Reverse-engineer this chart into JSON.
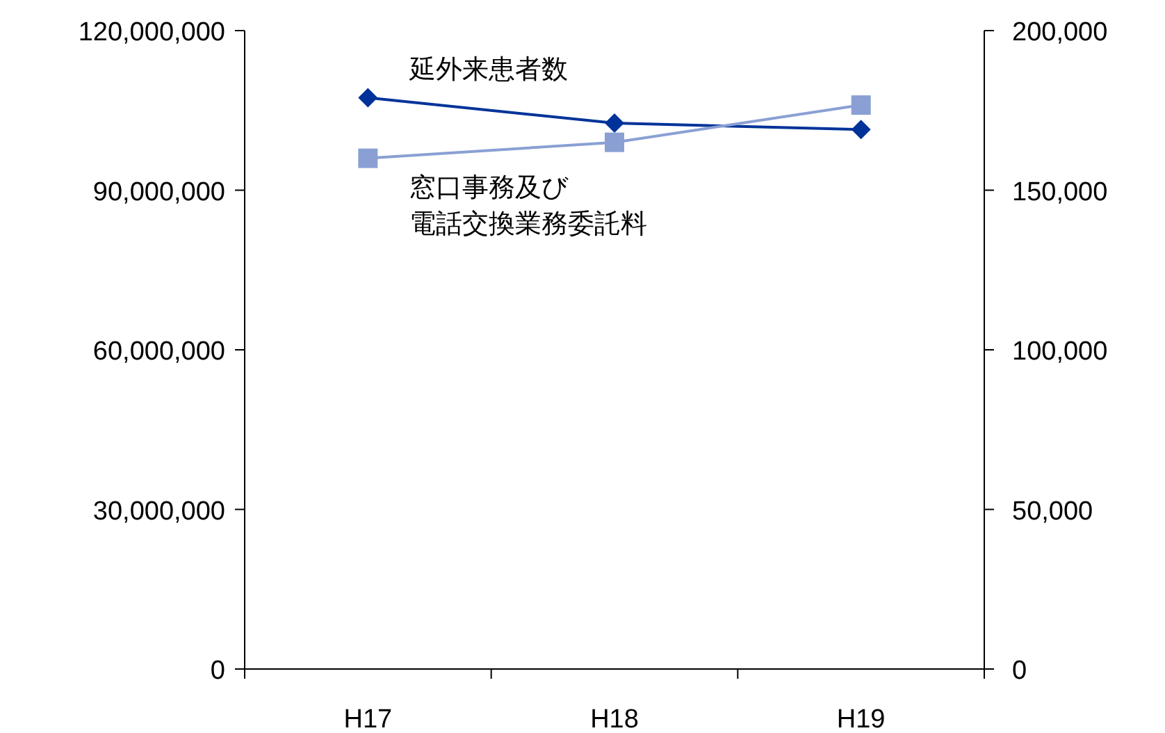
{
  "chart_data": {
    "type": "line",
    "categories": [
      "H17",
      "H18",
      "H19"
    ],
    "series": [
      {
        "name": "延外来患者数",
        "color": "#003399",
        "marker": "diamond",
        "axis": "y2",
        "values": [
          179000,
          171000,
          169000
        ]
      },
      {
        "name": "窓口事務及び電話交換業務委託料",
        "color": "#8aa0d4",
        "marker": "square",
        "values": [
          96000000,
          99000000,
          106000000
        ]
      }
    ],
    "ylim": [
      0,
      120000000
    ],
    "yticks": [
      {
        "value": 0,
        "label": "0"
      },
      {
        "value": 30000000,
        "label": "30,000,000"
      },
      {
        "value": 60000000,
        "label": "60,000,000"
      },
      {
        "value": 90000000,
        "label": "90,000,000"
      },
      {
        "value": 120000000,
        "label": "120,000,000"
      }
    ],
    "y2lim": [
      0,
      200000
    ],
    "y2ticks": [
      {
        "value": 0,
        "label": "0"
      },
      {
        "value": 50000,
        "label": "50,000"
      },
      {
        "value": 100000,
        "label": "100,000"
      },
      {
        "value": 150000,
        "label": "150,000"
      },
      {
        "value": 200000,
        "label": "200,000"
      }
    ],
    "grid": false
  }
}
